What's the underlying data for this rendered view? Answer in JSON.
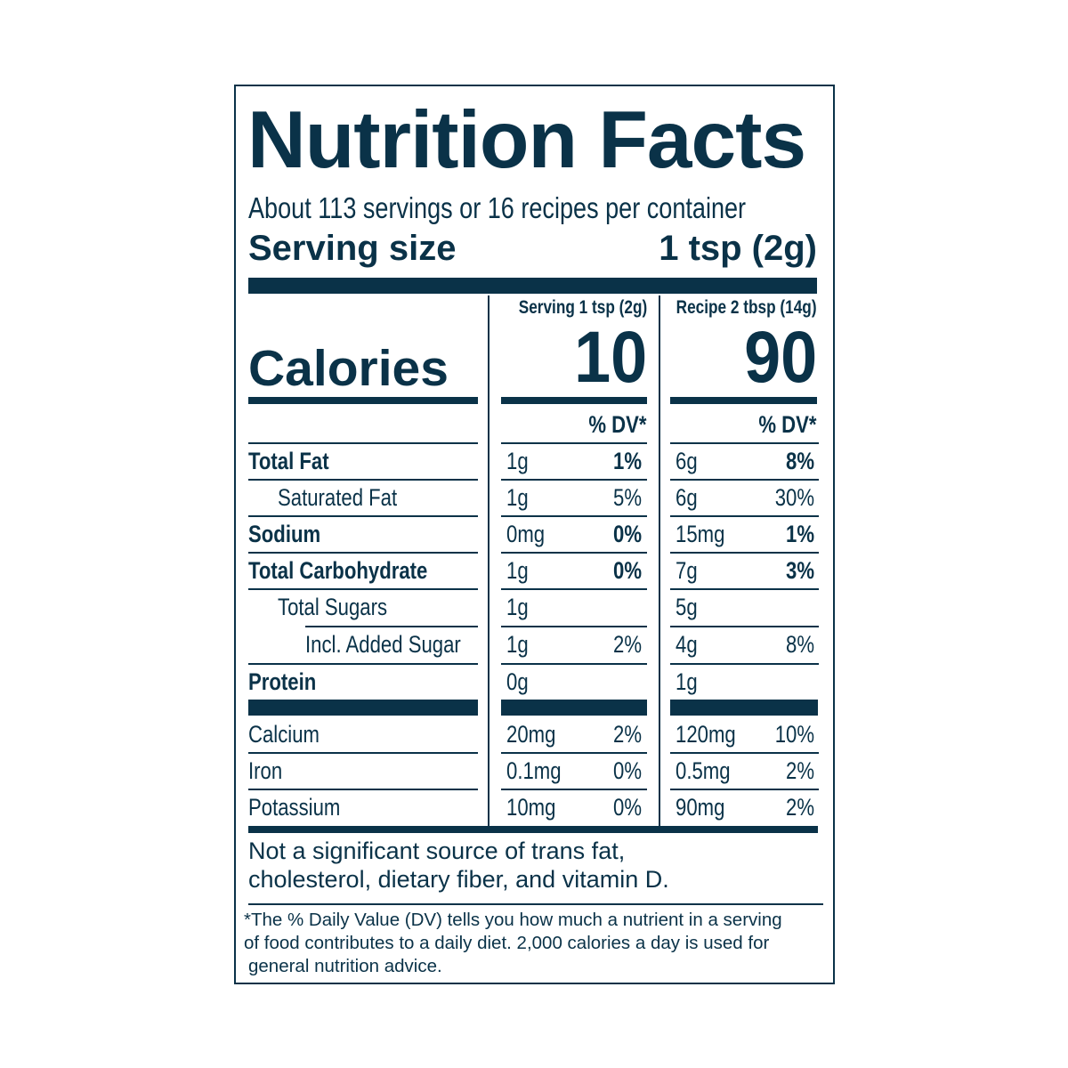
{
  "title": "Nutrition Facts",
  "servings_per_container": "About 113 servings or 16 recipes per container",
  "serving_size_label": "Serving size",
  "serving_size_value": "1 tsp (2g)",
  "columns": [
    {
      "header": "Serving 1 tsp (2g)",
      "calories": "10",
      "dv_label": "% DV*"
    },
    {
      "header": "Recipe 2 tbsp (14g)",
      "calories": "90",
      "dv_label": "% DV*"
    }
  ],
  "calories_label": "Calories",
  "nutrients": [
    {
      "name": "Total Fat",
      "bold": true,
      "indent": 0,
      "serving": {
        "amount": "1g",
        "dv": "1%"
      },
      "recipe": {
        "amount": "6g",
        "dv": "8%"
      }
    },
    {
      "name": "Saturated Fat",
      "bold": false,
      "indent": 1,
      "serving": {
        "amount": "1g",
        "dv": "5%"
      },
      "recipe": {
        "amount": "6g",
        "dv": "30%"
      }
    },
    {
      "name": "Sodium",
      "bold": true,
      "indent": 0,
      "serving": {
        "amount": "0mg",
        "dv": "0%"
      },
      "recipe": {
        "amount": "15mg",
        "dv": "1%"
      }
    },
    {
      "name": "Total Carbohydrate",
      "bold": true,
      "indent": 0,
      "serving": {
        "amount": "1g",
        "dv": "0%"
      },
      "recipe": {
        "amount": "7g",
        "dv": "3%"
      }
    },
    {
      "name": "Total Sugars",
      "bold": false,
      "indent": 1,
      "serving": {
        "amount": "1g",
        "dv": ""
      },
      "recipe": {
        "amount": "5g",
        "dv": ""
      }
    },
    {
      "name": "Incl. Added Sugar",
      "bold": false,
      "indent": 2,
      "serving": {
        "amount": "1g",
        "dv": "2%"
      },
      "recipe": {
        "amount": "4g",
        "dv": "8%"
      }
    },
    {
      "name": "Protein",
      "bold": true,
      "indent": 0,
      "serving": {
        "amount": "0g",
        "dv": ""
      },
      "recipe": {
        "amount": "1g",
        "dv": ""
      }
    }
  ],
  "vitamins": [
    {
      "name": "Calcium",
      "serving": {
        "amount": "20mg",
        "dv": "2%"
      },
      "recipe": {
        "amount": "120mg",
        "dv": "10%"
      }
    },
    {
      "name": "Iron",
      "serving": {
        "amount": "0.1mg",
        "dv": "0%"
      },
      "recipe": {
        "amount": "0.5mg",
        "dv": "2%"
      }
    },
    {
      "name": "Potassium",
      "serving": {
        "amount": "10mg",
        "dv": "0%"
      },
      "recipe": {
        "amount": "90mg",
        "dv": "2%"
      }
    }
  ],
  "not_significant": [
    "Not a significant source of trans fat,",
    "cholesterol, dietary fiber, and vitamin D."
  ],
  "footnote": [
    "*The % Daily Value (DV) tells you how much a nutrient in a serving",
    "of food contributes to a daily diet. 2,000 calories a day is used for",
    "general nutrition advice."
  ],
  "colors": {
    "ink": "#0a3248",
    "background": "#ffffff"
  }
}
